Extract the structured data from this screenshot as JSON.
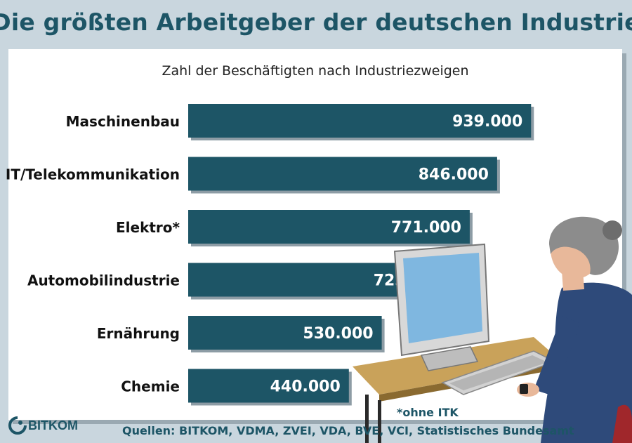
{
  "header": {
    "title": "Die größten Arbeitgeber der deutschen Industrie"
  },
  "chart_data": {
    "type": "bar",
    "orientation": "horizontal",
    "subtitle": "Zahl der Beschäftigten nach Industriezweigen",
    "categories": [
      "Maschinenbau",
      "IT/Telekommunikation",
      "Elektro*",
      "Automobilindustrie",
      "Ernährung",
      "Chemie"
    ],
    "values": [
      939000,
      846000,
      771000,
      723000,
      530000,
      440000
    ],
    "value_labels": [
      "939.000",
      "846.000",
      "771.000",
      "723.000",
      "530.000",
      "440.000"
    ],
    "bar_color": "#1d5566",
    "grid": false,
    "legend": "none"
  },
  "footer": {
    "footnote": "*ohne ITK",
    "sources": "Quellen: BITKOM, VDMA, ZVEI, VDA, BVE, VCI, Statistisches Bundesamt",
    "logo_text": "BITKOM"
  },
  "colors": {
    "accent": "#1d5566",
    "background": "#c9d6de",
    "panel": "#ffffff"
  }
}
